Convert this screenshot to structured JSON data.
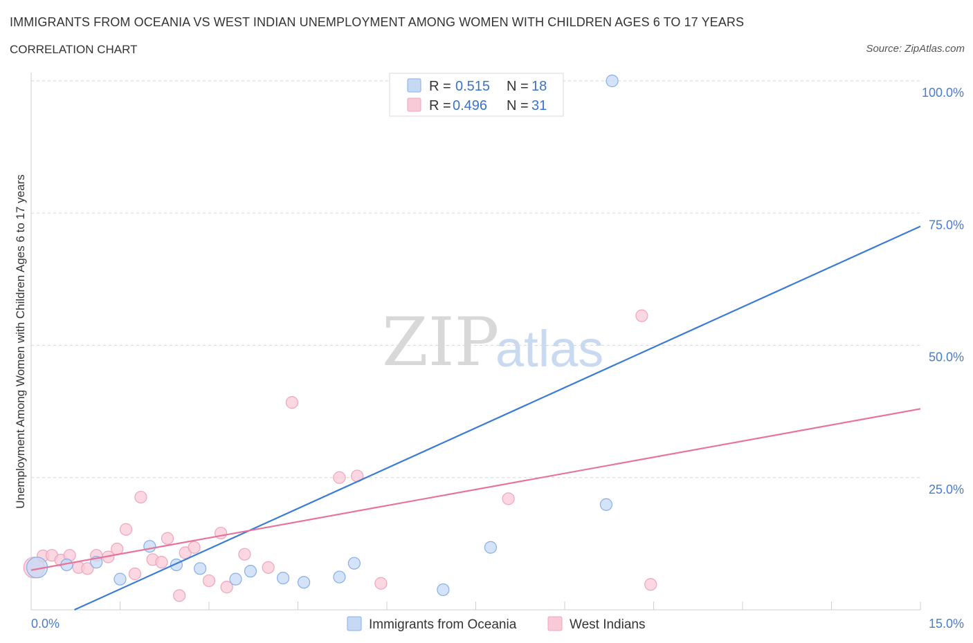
{
  "header": {
    "title": "IMMIGRANTS FROM OCEANIA VS WEST INDIAN UNEMPLOYMENT AMONG WOMEN WITH CHILDREN AGES 6 TO 17 YEARS",
    "subtitle": "CORRELATION CHART",
    "source": "Source: ZipAtlas.com"
  },
  "watermark": {
    "zip": "ZIP",
    "atlas": "atlas"
  },
  "legend": {
    "rows": [
      {
        "r_label": "R = ",
        "r_value": "0.515",
        "n_label": "N = ",
        "n_value": "18",
        "color": "#7aa9e8",
        "fill": "#c5d9f5"
      },
      {
        "r_label": "R = ",
        "r_value": "0.496",
        "n_label": "N = ",
        "n_value": "31",
        "color": "#ef9ab5",
        "fill": "#f8c9d7"
      }
    ]
  },
  "chart_data": {
    "type": "scatter",
    "title": "IMMIGRANTS FROM OCEANIA VS WEST INDIAN UNEMPLOYMENT AMONG WOMEN WITH CHILDREN AGES 6 TO 17 YEARS",
    "subtitle": "CORRELATION CHART",
    "ylabel": "Unemployment Among Women with Children Ages 6 to 17 years",
    "xlabel": "",
    "xlim": [
      0,
      15
    ],
    "ylim": [
      0,
      100
    ],
    "x_tick_labels": [
      "0.0%",
      "15.0%"
    ],
    "y_tick_labels": [
      "25.0%",
      "50.0%",
      "75.0%",
      "100.0%"
    ],
    "y_ticks": [
      25,
      50,
      75,
      100
    ],
    "grid": true,
    "legend_position": "bottom",
    "series": [
      {
        "name": "Immigrants from Oceania",
        "color": "#3a7bd5",
        "marker_fill": "#c5d9f5",
        "marker_stroke": "#86aee6",
        "points": [
          [
            0.1,
            8.0
          ],
          [
            0.6,
            8.5
          ],
          [
            1.1,
            9.0
          ],
          [
            1.5,
            5.8
          ],
          [
            2.0,
            12.0
          ],
          [
            2.45,
            8.5
          ],
          [
            2.85,
            7.8
          ],
          [
            3.45,
            5.8
          ],
          [
            3.7,
            7.3
          ],
          [
            4.25,
            6.0
          ],
          [
            4.6,
            5.2
          ],
          [
            5.2,
            6.2
          ],
          [
            5.45,
            8.8
          ],
          [
            6.95,
            3.8
          ],
          [
            7.75,
            11.8
          ],
          [
            9.7,
            19.9
          ],
          [
            9.8,
            100.0
          ],
          [
            6.95,
            100.0
          ]
        ],
        "trend": {
          "x1": 0.73,
          "y1": 0.0,
          "x2": 15.0,
          "y2": 72.5
        }
      },
      {
        "name": "West Indians",
        "color": "#e8739a",
        "marker_fill": "#f8c9d7",
        "marker_stroke": "#f0a4bc",
        "points": [
          [
            0.05,
            8.0
          ],
          [
            0.2,
            10.2
          ],
          [
            0.35,
            10.3
          ],
          [
            0.5,
            9.4
          ],
          [
            0.65,
            10.3
          ],
          [
            0.8,
            8.0
          ],
          [
            0.95,
            7.8
          ],
          [
            1.1,
            10.3
          ],
          [
            1.3,
            10.0
          ],
          [
            1.45,
            11.5
          ],
          [
            1.6,
            15.2
          ],
          [
            1.75,
            6.8
          ],
          [
            1.85,
            21.3
          ],
          [
            2.05,
            9.5
          ],
          [
            2.2,
            9.0
          ],
          [
            2.3,
            13.5
          ],
          [
            2.5,
            2.7
          ],
          [
            2.6,
            10.8
          ],
          [
            2.75,
            11.8
          ],
          [
            3.0,
            5.5
          ],
          [
            3.2,
            14.5
          ],
          [
            3.3,
            4.3
          ],
          [
            3.6,
            10.5
          ],
          [
            4.0,
            8.0
          ],
          [
            4.4,
            39.2
          ],
          [
            5.2,
            25.0
          ],
          [
            5.5,
            25.3
          ],
          [
            5.9,
            5.0
          ],
          [
            8.05,
            21.0
          ],
          [
            10.3,
            55.6
          ],
          [
            10.45,
            4.8
          ]
        ],
        "trend": {
          "x1": 0.0,
          "y1": 7.5,
          "x2": 15.0,
          "y2": 38.0
        }
      }
    ]
  }
}
